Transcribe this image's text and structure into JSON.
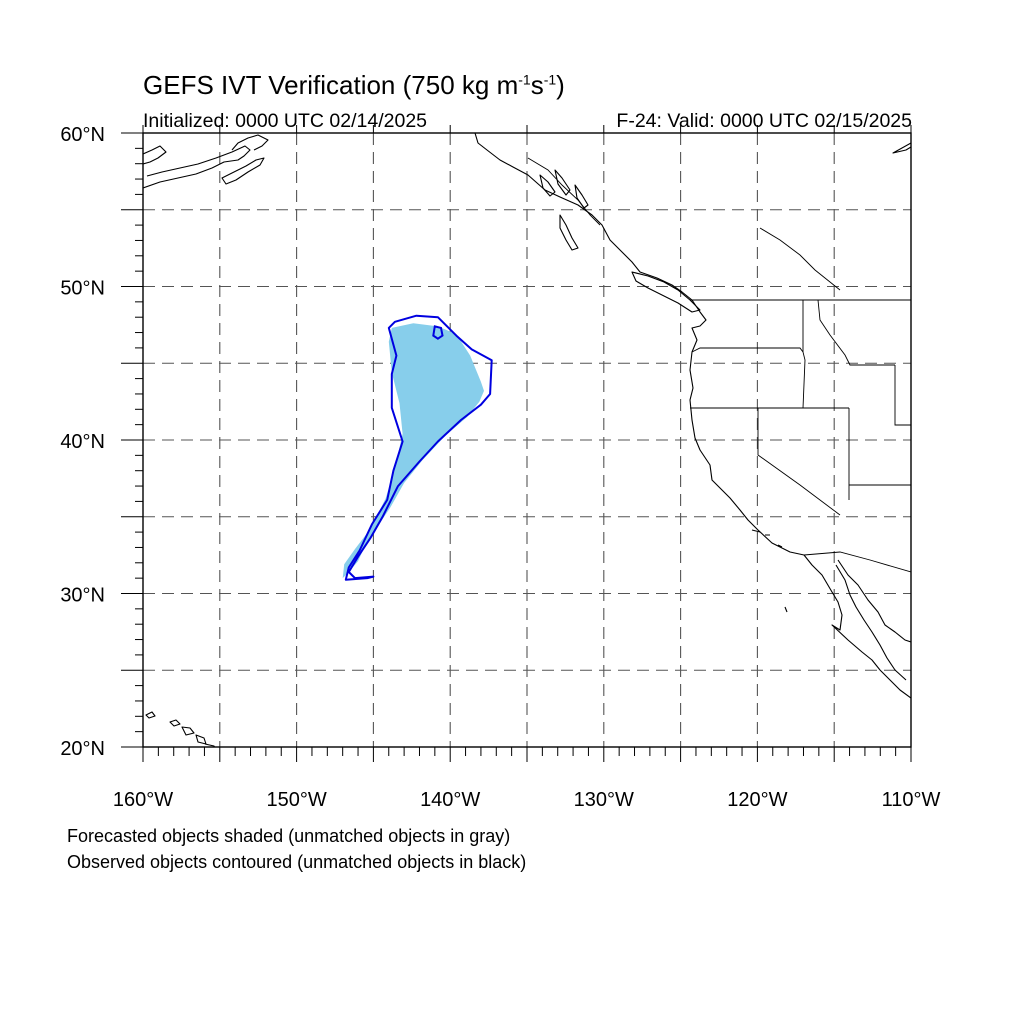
{
  "title": {
    "prefix": "GEFS IVT Verification (750 kg m",
    "exp1": "-1",
    "mid": "s",
    "exp2": "-1",
    "suffix": ")"
  },
  "initialized": "Initialized: 0000 UTC 02/14/2025",
  "valid": "F-24: Valid: 0000 UTC 02/15/2025",
  "lat_labels": [
    {
      "text": "60°N",
      "lat": 60
    },
    {
      "text": "50°N",
      "lat": 50
    },
    {
      "text": "40°N",
      "lat": 40
    },
    {
      "text": "30°N",
      "lat": 30
    },
    {
      "text": "20°N",
      "lat": 20
    }
  ],
  "lon_labels": [
    {
      "text": "160°W",
      "lon": -160
    },
    {
      "text": "150°W",
      "lon": -150
    },
    {
      "text": "140°W",
      "lon": -140
    },
    {
      "text": "130°W",
      "lon": -130
    },
    {
      "text": "120°W",
      "lon": -120
    },
    {
      "text": "110°W",
      "lon": -110
    }
  ],
  "map_extent": {
    "lon": [
      -160,
      -110
    ],
    "lat": [
      20,
      60
    ]
  },
  "grid_spacing_deg": 5,
  "notes": [
    "Forecasted objects shaded (unmatched objects in gray)",
    "Observed objects contoured (unmatched objects in black)"
  ],
  "colors": {
    "forecast_fill": "#87ceeb",
    "observed_contour": "#0000e0",
    "coastline": "#000000",
    "grid": "#555555"
  },
  "forecast_object": [
    [
      -143.8,
      47.3
    ],
    [
      -142.4,
      47.6
    ],
    [
      -140.8,
      47.4
    ],
    [
      -139.6,
      46.9
    ],
    [
      -138.7,
      45.5
    ],
    [
      -138.0,
      43.8
    ],
    [
      -137.8,
      43.2
    ],
    [
      -138.1,
      42.5
    ],
    [
      -138.9,
      41.5
    ],
    [
      -140.3,
      40.3
    ],
    [
      -141.8,
      38.7
    ],
    [
      -143.0,
      37.2
    ],
    [
      -143.9,
      35.6
    ],
    [
      -144.7,
      34.4
    ],
    [
      -145.4,
      33.4
    ],
    [
      -146.0,
      32.1
    ],
    [
      -146.6,
      31.4
    ],
    [
      -147.0,
      31.0
    ],
    [
      -146.9,
      31.9
    ],
    [
      -146.2,
      32.9
    ],
    [
      -145.2,
      34.2
    ],
    [
      -144.2,
      36.2
    ],
    [
      -143.6,
      38.2
    ],
    [
      -143.1,
      40.4
    ],
    [
      -143.3,
      42.4
    ],
    [
      -143.8,
      44.4
    ],
    [
      -144.0,
      46.4
    ]
  ],
  "observed_object": [
    [
      -143.6,
      47.7
    ],
    [
      -142.2,
      48.1
    ],
    [
      -140.8,
      48.0
    ],
    [
      -139.6,
      46.8
    ],
    [
      -138.6,
      45.9
    ],
    [
      -137.3,
      45.2
    ],
    [
      -137.4,
      43.0
    ],
    [
      -138.0,
      42.3
    ],
    [
      -139.3,
      41.3
    ],
    [
      -140.8,
      39.9
    ],
    [
      -142.0,
      38.6
    ],
    [
      -143.4,
      37.0
    ],
    [
      -144.4,
      35.0
    ],
    [
      -145.2,
      33.6
    ],
    [
      -146.0,
      32.4
    ],
    [
      -146.6,
      31.4
    ],
    [
      -146.2,
      31.0
    ],
    [
      -145.0,
      31.1
    ],
    [
      -145.4,
      31.0
    ],
    [
      -146.8,
      30.9
    ],
    [
      -146.6,
      31.7
    ],
    [
      -145.9,
      32.8
    ],
    [
      -145.1,
      34.5
    ],
    [
      -144.1,
      36.1
    ],
    [
      -143.7,
      38.0
    ],
    [
      -143.1,
      39.9
    ],
    [
      -143.8,
      42.1
    ],
    [
      -143.8,
      44.3
    ],
    [
      -143.5,
      45.5
    ],
    [
      -144.0,
      47.3
    ]
  ],
  "observed_small_object": [
    [
      -141.0,
      47.4
    ],
    [
      -140.6,
      47.3
    ],
    [
      -140.5,
      46.8
    ],
    [
      -140.8,
      46.6
    ],
    [
      -141.1,
      46.8
    ]
  ]
}
